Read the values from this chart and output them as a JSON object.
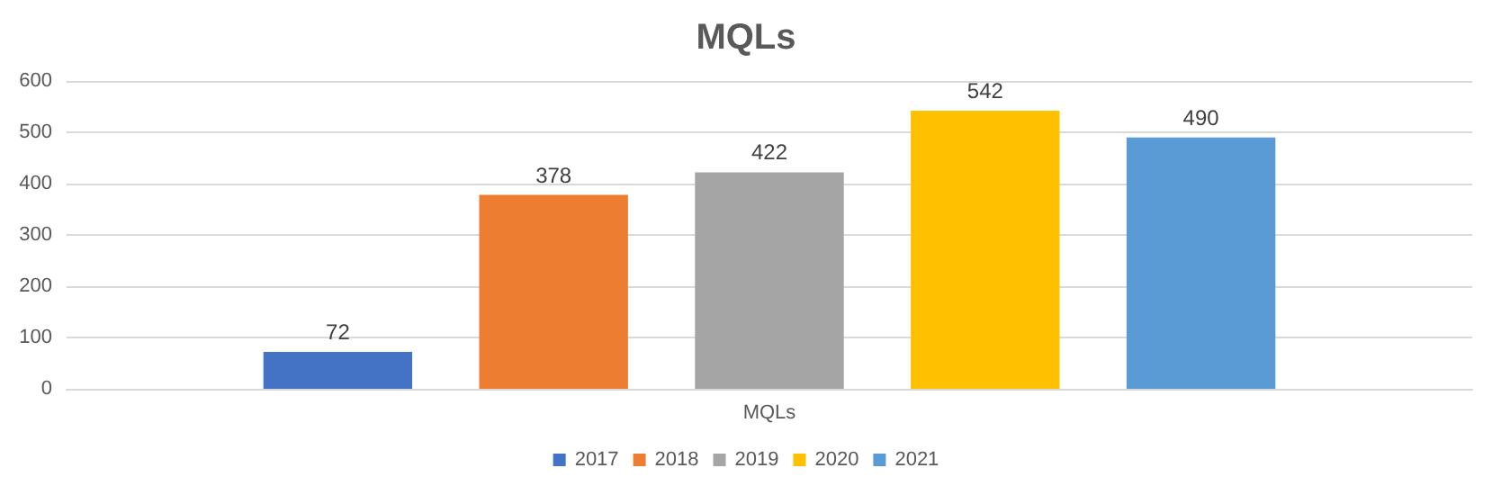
{
  "chart_data": {
    "type": "bar",
    "title": "MQLs",
    "categories": [
      "MQLs"
    ],
    "series": [
      {
        "name": "2017",
        "color": "#4472c4",
        "values": [
          72
        ]
      },
      {
        "name": "2018",
        "color": "#ed7d31",
        "values": [
          378
        ]
      },
      {
        "name": "2019",
        "color": "#a5a5a5",
        "values": [
          422
        ]
      },
      {
        "name": "2020",
        "color": "#ffc000",
        "values": [
          542
        ]
      },
      {
        "name": "2021",
        "color": "#5b9bd5",
        "values": [
          490
        ]
      }
    ],
    "ylim": [
      0,
      600
    ],
    "yticks": [
      0,
      100,
      200,
      300,
      400,
      500,
      600
    ],
    "grid": "y",
    "legend": "bottom",
    "data_labels": true
  }
}
